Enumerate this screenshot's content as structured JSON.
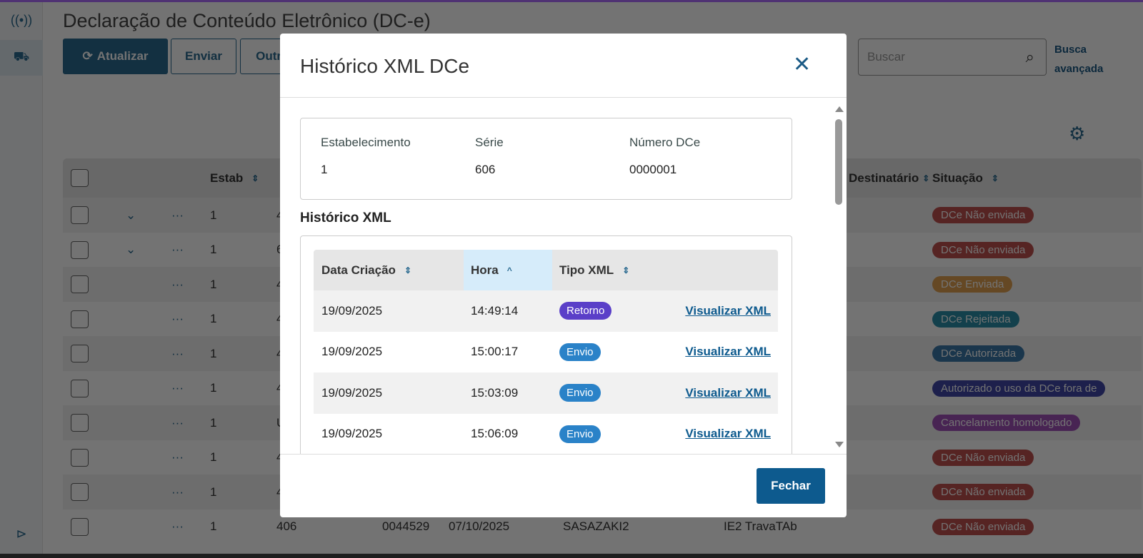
{
  "page": {
    "title": "Declaração de Conteúdo Eletrônico (DC-e)"
  },
  "toolbar": {
    "refresh_label": "Atualizar",
    "send_label": "Enviar",
    "other_label": "Outros"
  },
  "search": {
    "placeholder": "Buscar"
  },
  "advanced_search": {
    "line1": "Busca",
    "line2": "avançada"
  },
  "table": {
    "headers": {
      "estab": "Estab",
      "destinatario": "Destinatário",
      "situacao": "Situação"
    },
    "rows": [
      {
        "estab": "1",
        "serie": "4",
        "expand": true,
        "situacao": "DCe Não enviada",
        "color": "#c0504d"
      },
      {
        "estab": "1",
        "serie": "6",
        "expand": true,
        "situacao": "DCe Não enviada",
        "color": "#c0504d"
      },
      {
        "estab": "1",
        "serie": "4",
        "situacao": "DCe Enviada",
        "color": "#e0a050"
      },
      {
        "estab": "1",
        "serie": "4",
        "situacao": "DCe Rejeitada",
        "color": "#2a8fa8"
      },
      {
        "estab": "1",
        "serie": "4",
        "situacao": "DCe Autorizada",
        "color": "#3a78a8"
      },
      {
        "estab": "1",
        "serie": "4",
        "situacao": "Autorizado o uso da DCe fora de",
        "color": "#4048a8"
      },
      {
        "estab": "1",
        "serie": "U",
        "situacao": "Cancelamento homologado",
        "color": "#a050b8"
      },
      {
        "estab": "1",
        "serie": "4",
        "situacao": "DCe Não enviada",
        "color": "#c0504d"
      },
      {
        "estab": "1",
        "serie": "4",
        "situacao": "DCe Não enviada",
        "color": "#c0504d"
      },
      {
        "estab": "1",
        "serie": "406",
        "numero": "0044529",
        "data": "07/10/2025",
        "emitente": "SASAZAKI2",
        "destinatario": "IE2 TravaTAb",
        "situacao": "DCe Não enviada",
        "color": "#c0504d"
      }
    ]
  },
  "modal": {
    "title": "Histórico XML DCe",
    "info": {
      "estabelecimento_label": "Estabelecimento",
      "estabelecimento": "1",
      "serie_label": "Série",
      "serie": "606",
      "numero_label": "Número DCe",
      "numero": "0000001"
    },
    "history_title": "Histórico XML",
    "history": {
      "headers": {
        "data": "Data Criação",
        "hora": "Hora",
        "tipo": "Tipo XML"
      },
      "sort": {
        "column": "Hora",
        "direction": "asc"
      },
      "rows": [
        {
          "data": "19/09/2025",
          "hora": "14:49:14",
          "tipo": "Retorno",
          "tipo_color": "#5a3fc8",
          "link": "Visualizar XML"
        },
        {
          "data": "19/09/2025",
          "hora": "15:00:17",
          "tipo": "Envio",
          "tipo_color": "#2a82c8",
          "link": "Visualizar XML"
        },
        {
          "data": "19/09/2025",
          "hora": "15:03:09",
          "tipo": "Envio",
          "tipo_color": "#2a82c8",
          "link": "Visualizar XML"
        },
        {
          "data": "19/09/2025",
          "hora": "15:06:09",
          "tipo": "Envio",
          "tipo_color": "#2a82c8",
          "link": "Visualizar XML"
        }
      ]
    },
    "close_label": "Fechar"
  }
}
